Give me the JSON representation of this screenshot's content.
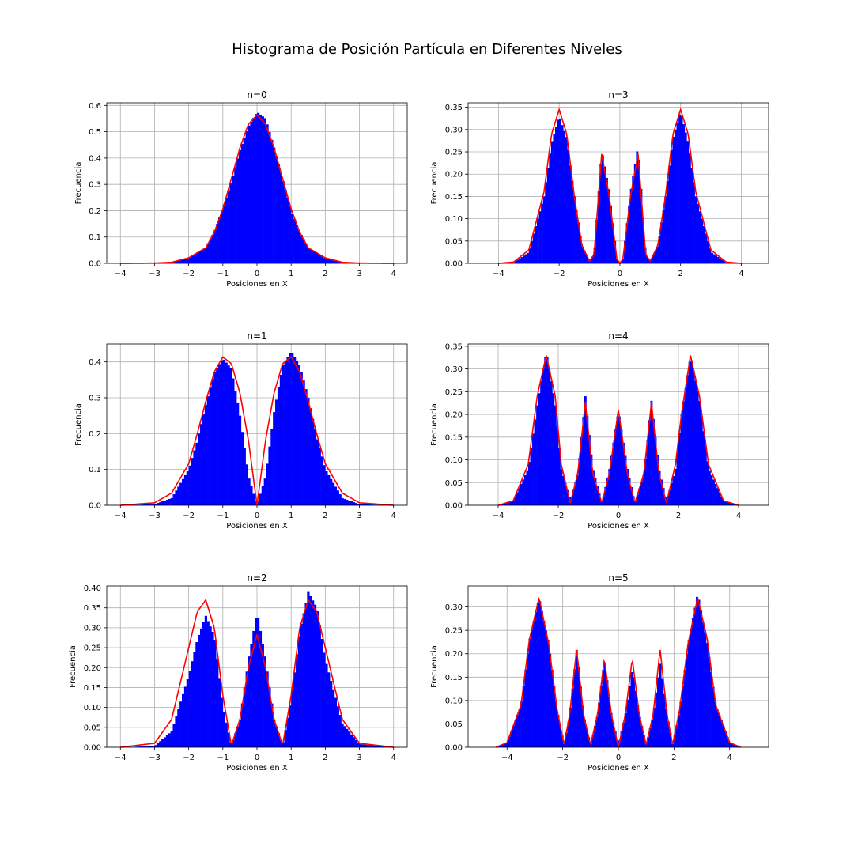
{
  "figure": {
    "title": "Histograma de Posición Partícula en Diferentes Niveles"
  },
  "colors": {
    "histogram": "#0000ff",
    "curve": "#ff0000",
    "grid": "#b0b0b0"
  },
  "chart_data": [
    {
      "type": "bar",
      "title": "n=0",
      "xlabel": "Posiciones en X",
      "ylabel": "Frecuencia",
      "xlim": [
        -4.4,
        4.4
      ],
      "ylim": [
        0,
        0.61
      ],
      "xticks": [
        -4,
        -3,
        -2,
        -1,
        0,
        1,
        2,
        3,
        4
      ],
      "xtick_labels": [
        "−4",
        "−3",
        "−2",
        "−1",
        "0",
        "1",
        "2",
        "3",
        "4"
      ],
      "yticks": [
        0.0,
        0.1,
        0.2,
        0.3,
        0.4,
        0.5,
        0.6
      ],
      "ytick_labels": [
        "0.0",
        "0.1",
        "0.2",
        "0.3",
        "0.4",
        "0.5",
        "0.6"
      ],
      "grid": true,
      "series": [
        {
          "type": "histogram",
          "x": [
            -4,
            -3,
            -2.5,
            -2,
            -1.5,
            -1.25,
            -1,
            -0.75,
            -0.5,
            -0.25,
            0,
            0.25,
            0.5,
            0.75,
            1,
            1.25,
            1.5,
            2,
            2.5,
            3,
            4
          ],
          "y": [
            0,
            0,
            0.003,
            0.02,
            0.06,
            0.12,
            0.21,
            0.31,
            0.43,
            0.52,
            0.575,
            0.55,
            0.44,
            0.32,
            0.2,
            0.12,
            0.06,
            0.018,
            0.003,
            0,
            0
          ]
        },
        {
          "type": "line",
          "x": [
            -4,
            -3,
            -2.5,
            -2,
            -1.5,
            -1.25,
            -1,
            -0.75,
            -0.5,
            -0.25,
            0,
            0.25,
            0.5,
            0.75,
            1,
            1.25,
            1.5,
            2,
            2.5,
            3,
            4
          ],
          "y": [
            0,
            0.001,
            0.004,
            0.021,
            0.059,
            0.118,
            0.207,
            0.322,
            0.439,
            0.529,
            0.564,
            0.529,
            0.439,
            0.322,
            0.207,
            0.118,
            0.059,
            0.021,
            0.004,
            0.001,
            0
          ]
        }
      ]
    },
    {
      "type": "bar",
      "title": "n=3",
      "xlabel": "Posiciones en X",
      "ylabel": "Frecuencia",
      "xlim": [
        -5.0,
        4.9
      ],
      "ylim": [
        0,
        0.36
      ],
      "xticks": [
        -4,
        -2,
        0,
        2,
        4
      ],
      "xtick_labels": [
        "−4",
        "−2",
        "0",
        "2",
        "4"
      ],
      "yticks": [
        0.0,
        0.05,
        0.1,
        0.15,
        0.2,
        0.25,
        0.3,
        0.35
      ],
      "ytick_labels": [
        "0.00",
        "0.05",
        "0.10",
        "0.15",
        "0.20",
        "0.25",
        "0.30",
        "0.35"
      ],
      "grid": true,
      "series": [
        {
          "type": "histogram",
          "x": [
            -4,
            -3.5,
            -3,
            -2.5,
            -2.25,
            -2,
            -1.75,
            -1.5,
            -1.25,
            -1,
            -0.85,
            -0.6,
            -0.35,
            -0.1,
            0,
            0.1,
            0.35,
            0.6,
            0.85,
            1,
            1.25,
            1.5,
            1.75,
            2,
            2.25,
            2.5,
            3,
            3.5,
            4
          ],
          "y": [
            0,
            0.002,
            0.025,
            0.15,
            0.27,
            0.33,
            0.28,
            0.15,
            0.04,
            0.005,
            0.02,
            0.255,
            0.16,
            0.01,
            0,
            0.01,
            0.16,
            0.265,
            0.02,
            0.005,
            0.04,
            0.15,
            0.28,
            0.34,
            0.27,
            0.15,
            0.025,
            0.002,
            0
          ]
        },
        {
          "type": "line",
          "x": [
            -4,
            -3.5,
            -3,
            -2.5,
            -2.25,
            -2,
            -1.75,
            -1.5,
            -1.25,
            -1,
            -0.85,
            -0.6,
            -0.35,
            -0.1,
            0,
            0.1,
            0.35,
            0.6,
            0.85,
            1,
            1.25,
            1.5,
            1.75,
            2,
            2.25,
            2.5,
            3,
            3.5,
            4
          ],
          "y": [
            0,
            0.003,
            0.03,
            0.16,
            0.29,
            0.345,
            0.29,
            0.15,
            0.04,
            0.005,
            0.02,
            0.245,
            0.15,
            0.01,
            0,
            0.01,
            0.15,
            0.245,
            0.02,
            0.005,
            0.04,
            0.15,
            0.29,
            0.345,
            0.29,
            0.16,
            0.03,
            0.003,
            0
          ]
        }
      ]
    },
    {
      "type": "bar",
      "title": "n=1",
      "xlabel": "Posiciones en X",
      "ylabel": "Frecuencia",
      "xlim": [
        -4.4,
        4.4
      ],
      "ylim": [
        0,
        0.45
      ],
      "xticks": [
        -4,
        -3,
        -2,
        -1,
        0,
        1,
        2,
        3,
        4
      ],
      "xtick_labels": [
        "−4",
        "−3",
        "−2",
        "−1",
        "0",
        "1",
        "2",
        "3",
        "4"
      ],
      "yticks": [
        0.0,
        0.1,
        0.2,
        0.3,
        0.4
      ],
      "ytick_labels": [
        "0.0",
        "0.1",
        "0.2",
        "0.3",
        "0.4"
      ],
      "grid": true,
      "series": [
        {
          "type": "histogram",
          "x": [
            -4,
            -3,
            -2.5,
            -2,
            -1.75,
            -1.5,
            -1.25,
            -1,
            -0.75,
            -0.5,
            -0.25,
            0,
            0.25,
            0.5,
            0.75,
            1,
            1.25,
            1.5,
            1.75,
            2,
            2.5,
            3,
            4
          ],
          "y": [
            0,
            0.003,
            0.02,
            0.1,
            0.18,
            0.28,
            0.37,
            0.41,
            0.38,
            0.25,
            0.08,
            0,
            0.08,
            0.26,
            0.39,
            0.43,
            0.39,
            0.3,
            0.19,
            0.1,
            0.02,
            0.003,
            0
          ]
        },
        {
          "type": "line",
          "x": [
            -4,
            -3,
            -2.5,
            -2,
            -1.75,
            -1.5,
            -1.25,
            -1,
            -0.75,
            -0.5,
            -0.25,
            0,
            0.25,
            0.5,
            0.75,
            1,
            1.25,
            1.5,
            1.75,
            2,
            2.5,
            3,
            4
          ],
          "y": [
            0,
            0.007,
            0.034,
            0.116,
            0.199,
            0.29,
            0.372,
            0.414,
            0.395,
            0.313,
            0.181,
            0,
            0.181,
            0.313,
            0.395,
            0.414,
            0.372,
            0.29,
            0.199,
            0.116,
            0.034,
            0.007,
            0
          ]
        }
      ]
    },
    {
      "type": "bar",
      "title": "n=4",
      "xlabel": "Posiciones en X",
      "ylabel": "Frecuencia",
      "xlim": [
        -5.0,
        5.0
      ],
      "ylim": [
        0,
        0.355
      ],
      "xticks": [
        -4,
        -2,
        0,
        2,
        4
      ],
      "xtick_labels": [
        "−4",
        "−2",
        "0",
        "2",
        "4"
      ],
      "yticks": [
        0.0,
        0.05,
        0.1,
        0.15,
        0.2,
        0.25,
        0.3,
        0.35
      ],
      "ytick_labels": [
        "0.00",
        "0.05",
        "0.10",
        "0.15",
        "0.20",
        "0.25",
        "0.30",
        "0.35"
      ],
      "grid": true,
      "series": [
        {
          "type": "histogram",
          "x": [
            -4,
            -3.5,
            -3,
            -2.7,
            -2.4,
            -2.1,
            -1.9,
            -1.6,
            -1.35,
            -1.1,
            -0.85,
            -0.55,
            -0.3,
            0,
            0.3,
            0.55,
            0.85,
            1.1,
            1.35,
            1.6,
            1.9,
            2.1,
            2.4,
            2.7,
            3,
            3.5,
            4
          ],
          "y": [
            0,
            0.01,
            0.08,
            0.22,
            0.34,
            0.22,
            0.08,
            0.01,
            0.07,
            0.24,
            0.08,
            0.005,
            0.08,
            0.21,
            0.08,
            0.005,
            0.07,
            0.23,
            0.08,
            0.01,
            0.08,
            0.2,
            0.33,
            0.23,
            0.08,
            0.01,
            0
          ]
        },
        {
          "type": "line",
          "x": [
            -4,
            -3.5,
            -3,
            -2.7,
            -2.4,
            -2.1,
            -1.9,
            -1.6,
            -1.35,
            -1.1,
            -0.85,
            -0.55,
            -0.3,
            0,
            0.3,
            0.55,
            0.85,
            1.1,
            1.35,
            1.6,
            1.9,
            2.1,
            2.4,
            2.7,
            3,
            3.5,
            4
          ],
          "y": [
            0,
            0.01,
            0.09,
            0.24,
            0.33,
            0.24,
            0.09,
            0.005,
            0.07,
            0.226,
            0.07,
            0.005,
            0.07,
            0.21,
            0.07,
            0.005,
            0.07,
            0.226,
            0.07,
            0.005,
            0.09,
            0.2,
            0.33,
            0.24,
            0.09,
            0.01,
            0
          ]
        }
      ]
    },
    {
      "type": "bar",
      "title": "n=2",
      "xlabel": "Posiciones en X",
      "ylabel": "Frecuencia",
      "xlim": [
        -4.4,
        4.4
      ],
      "ylim": [
        0,
        0.405
      ],
      "xticks": [
        -4,
        -3,
        -2,
        -1,
        0,
        1,
        2,
        3,
        4
      ],
      "xtick_labels": [
        "−4",
        "−3",
        "−2",
        "−1",
        "0",
        "1",
        "2",
        "3",
        "4"
      ],
      "yticks": [
        0.0,
        0.05,
        0.1,
        0.15,
        0.2,
        0.25,
        0.3,
        0.35,
        0.4
      ],
      "ytick_labels": [
        "0.00",
        "0.05",
        "0.10",
        "0.15",
        "0.20",
        "0.25",
        "0.30",
        "0.35",
        "0.40"
      ],
      "grid": true,
      "series": [
        {
          "type": "histogram",
          "x": [
            -4,
            -3,
            -2.5,
            -2,
            -1.75,
            -1.5,
            -1.25,
            -1,
            -0.75,
            -0.5,
            -0.25,
            0,
            0.25,
            0.5,
            0.75,
            1,
            1.25,
            1.5,
            1.75,
            2,
            2.5,
            3,
            4
          ],
          "y": [
            0,
            0.003,
            0.04,
            0.18,
            0.27,
            0.33,
            0.28,
            0.1,
            0.005,
            0.07,
            0.22,
            0.34,
            0.22,
            0.07,
            0.005,
            0.12,
            0.29,
            0.39,
            0.35,
            0.22,
            0.06,
            0.008,
            0
          ]
        },
        {
          "type": "line",
          "x": [
            -4,
            -3,
            -2.5,
            -2,
            -1.75,
            -1.5,
            -1.25,
            -1,
            -0.75,
            -0.5,
            -0.25,
            0,
            0.25,
            0.5,
            0.75,
            1,
            1.25,
            1.5,
            1.75,
            2,
            2.5,
            3,
            4
          ],
          "y": [
            0,
            0.01,
            0.07,
            0.25,
            0.34,
            0.37,
            0.3,
            0.13,
            0.005,
            0.07,
            0.2,
            0.283,
            0.2,
            0.07,
            0.005,
            0.13,
            0.3,
            0.37,
            0.34,
            0.25,
            0.07,
            0.01,
            0
          ]
        }
      ]
    },
    {
      "type": "bar",
      "title": "n=5",
      "xlabel": "Posiciones en X",
      "ylabel": "Frecuencia",
      "xlim": [
        -5.4,
        5.4
      ],
      "ylim": [
        0,
        0.345
      ],
      "xticks": [
        -4,
        -2,
        0,
        2,
        4
      ],
      "xtick_labels": [
        "−4",
        "−2",
        "0",
        "2",
        "4"
      ],
      "yticks": [
        0.0,
        0.05,
        0.1,
        0.15,
        0.2,
        0.25,
        0.3
      ],
      "ytick_labels": [
        "0.00",
        "0.05",
        "0.10",
        "0.15",
        "0.20",
        "0.25",
        "0.30"
      ],
      "grid": true,
      "series": [
        {
          "type": "histogram",
          "x": [
            -4.4,
            -4,
            -3.5,
            -3.2,
            -2.85,
            -2.5,
            -2.2,
            -1.95,
            -1.75,
            -1.5,
            -1.25,
            -1,
            -0.75,
            -0.5,
            -0.25,
            0,
            0.25,
            0.5,
            0.75,
            1,
            1.25,
            1.5,
            1.75,
            1.95,
            2.2,
            2.5,
            2.85,
            3.2,
            3.5,
            4,
            4.4
          ],
          "y": [
            0,
            0.01,
            0.09,
            0.23,
            0.32,
            0.22,
            0.08,
            0.005,
            0.07,
            0.21,
            0.07,
            0.005,
            0.07,
            0.19,
            0.07,
            0.005,
            0.07,
            0.17,
            0.07,
            0.005,
            0.07,
            0.18,
            0.07,
            0.005,
            0.08,
            0.22,
            0.33,
            0.22,
            0.09,
            0.01,
            0
          ]
        },
        {
          "type": "line",
          "x": [
            -4.4,
            -4,
            -3.5,
            -3.2,
            -2.85,
            -2.5,
            -2.2,
            -1.95,
            -1.75,
            -1.5,
            -1.25,
            -1,
            -0.75,
            -0.5,
            -0.25,
            0,
            0.25,
            0.5,
            0.75,
            1,
            1.25,
            1.5,
            1.75,
            1.95,
            2.2,
            2.5,
            2.85,
            3.2,
            3.5,
            4,
            4.4
          ],
          "y": [
            0,
            0.01,
            0.09,
            0.23,
            0.32,
            0.22,
            0.08,
            0.005,
            0.07,
            0.21,
            0.07,
            0.005,
            0.07,
            0.19,
            0.07,
            0,
            0.07,
            0.19,
            0.07,
            0.005,
            0.07,
            0.21,
            0.07,
            0.005,
            0.08,
            0.22,
            0.32,
            0.23,
            0.09,
            0.01,
            0
          ]
        }
      ]
    }
  ]
}
